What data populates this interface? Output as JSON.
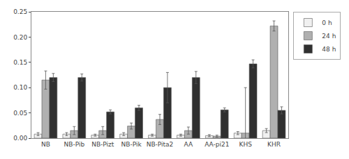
{
  "chart_data": {
    "type": "bar",
    "categories": [
      "NB",
      "NB-Pib",
      "NB-Pizt",
      "NB-Pik",
      "NB-Pita2",
      "AA",
      "AA-pi21",
      "KHS",
      "KHR"
    ],
    "series": [
      {
        "name": "0 h",
        "color": "#f0f0f0",
        "values": [
          0.008,
          0.008,
          0.006,
          0.008,
          0.006,
          0.006,
          0.005,
          0.01,
          0.015
        ],
        "errors": [
          0.003,
          0.003,
          0.002,
          0.003,
          0.002,
          0.002,
          0.002,
          0.003,
          0.004
        ]
      },
      {
        "name": "24 h",
        "color": "#b0b0b0",
        "values": [
          0.115,
          0.015,
          0.015,
          0.024,
          0.037,
          0.015,
          0.004,
          0.01,
          0.222
        ],
        "errors": [
          0.018,
          0.008,
          0.008,
          0.006,
          0.01,
          0.007,
          0.002,
          0.09,
          0.01
        ]
      },
      {
        "name": "48 h",
        "color": "#303030",
        "values": [
          0.12,
          0.12,
          0.052,
          0.06,
          0.1,
          0.12,
          0.056,
          0.147,
          0.055
        ],
        "errors": [
          0.008,
          0.007,
          0.004,
          0.005,
          0.03,
          0.012,
          0.004,
          0.008,
          0.007
        ]
      }
    ],
    "ylim": [
      0,
      0.25
    ],
    "yticks": [
      {
        "value": 0,
        "label": "0.00"
      },
      0.05,
      {
        "value": 0.1,
        "label": "0.10"
      },
      0.15,
      {
        "value": 0.2,
        "label": "0.20"
      },
      0.25
    ],
    "grid": false,
    "legend": "upper right"
  }
}
